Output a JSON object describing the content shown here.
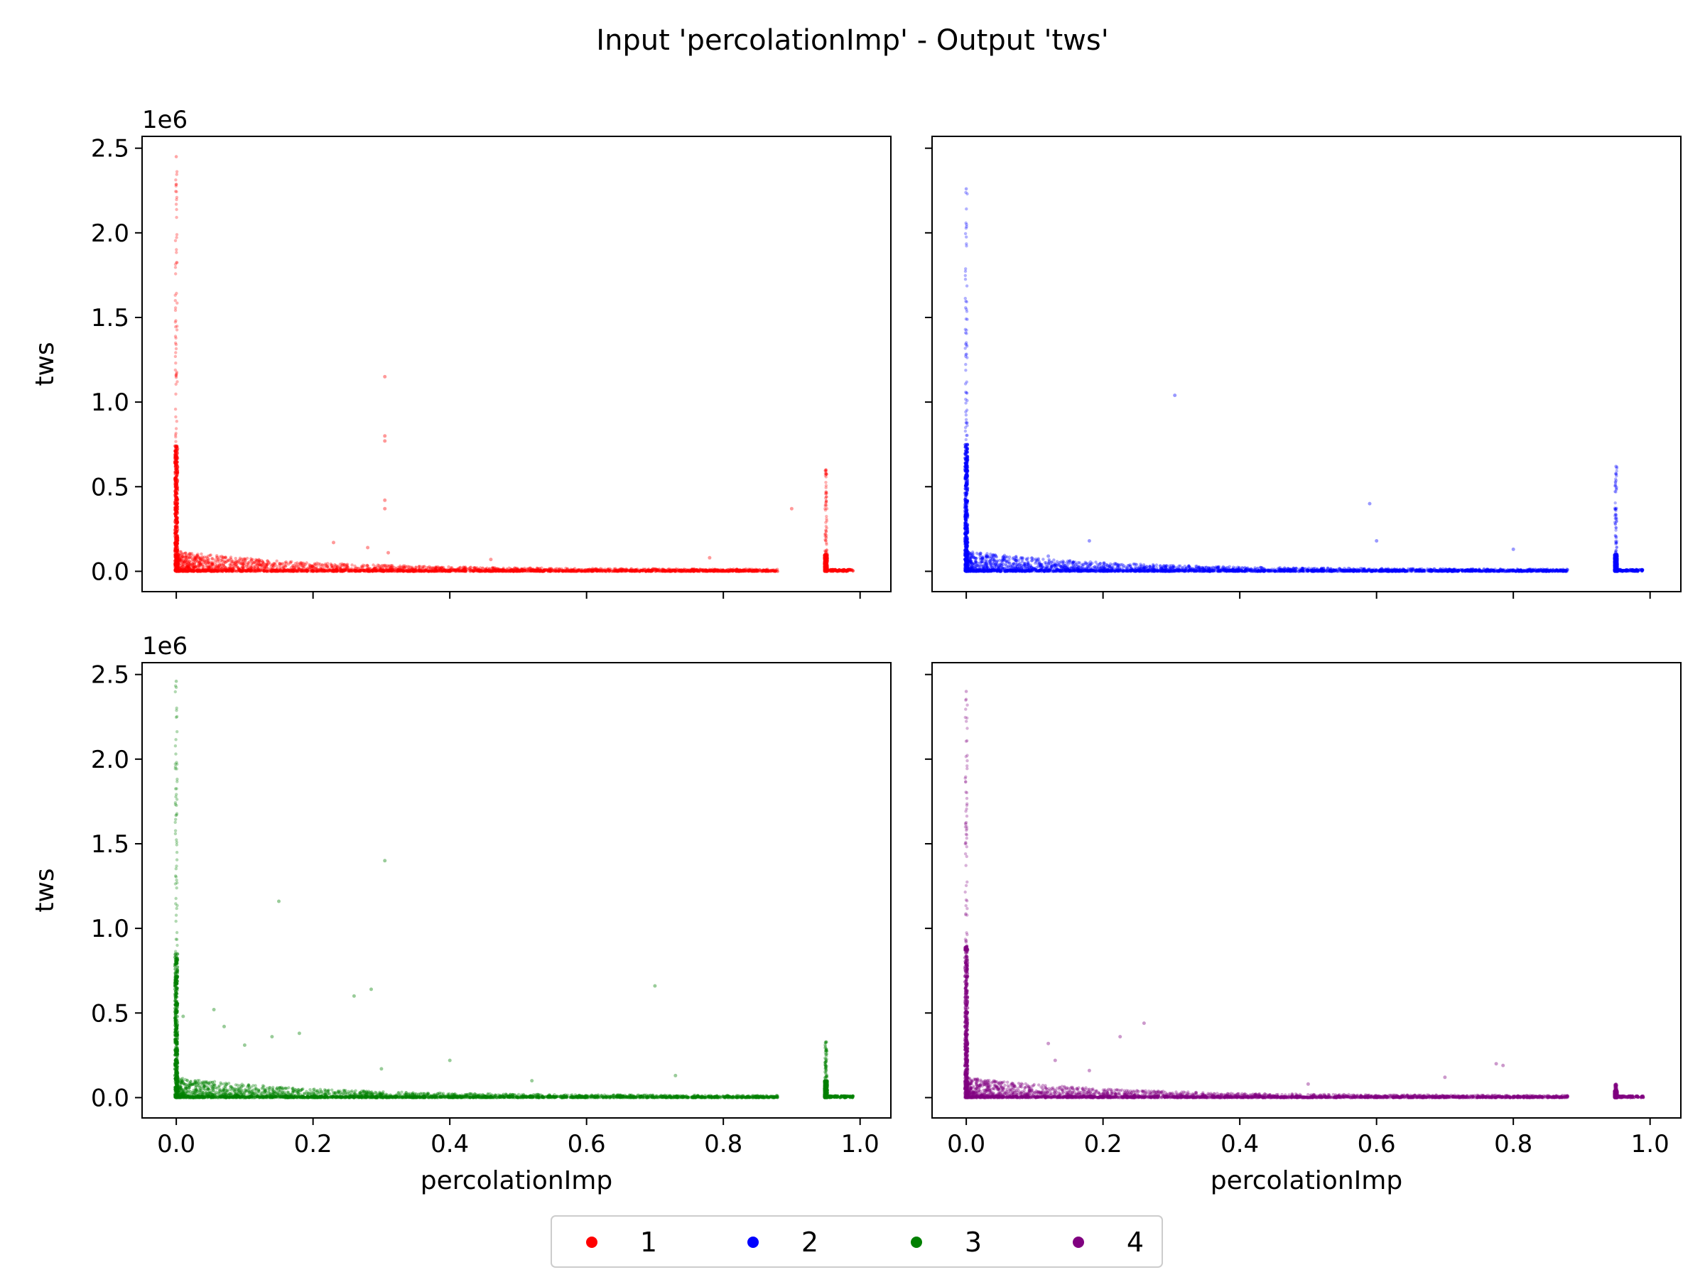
{
  "figure": {
    "title": "Input 'percolationImp' - Output 'tws'"
  },
  "chart_data": [
    {
      "type": "scatter",
      "panel": "top-left",
      "series": [
        {
          "name": "1",
          "color": "#ff0000"
        }
      ],
      "xlabel": "",
      "ylabel": "tws",
      "y_offset_text": "1e6",
      "xlim": [
        -0.05,
        1.045
      ],
      "ylim": [
        -0.12,
        2.57
      ],
      "x_ticks": [
        0.0,
        0.2,
        0.4,
        0.6,
        0.8,
        1.0
      ],
      "x_tick_labels": [],
      "y_ticks": [
        0.0,
        0.5,
        1.0,
        1.5,
        2.0,
        2.5
      ],
      "y_tick_labels": [
        "0.0",
        "0.5",
        "1.0",
        "1.5",
        "2.0",
        "2.5"
      ],
      "vertical_clusters": [
        {
          "x": 0.0,
          "y_max": 2.45,
          "dense_to": 0.75
        },
        {
          "x": 0.95,
          "y_max": 0.6,
          "dense_to": 0.1
        }
      ],
      "outliers": [
        {
          "x": 0.305,
          "y": 1.15
        },
        {
          "x": 0.305,
          "y": 0.8
        },
        {
          "x": 0.305,
          "y": 0.77
        },
        {
          "x": 0.305,
          "y": 0.42
        },
        {
          "x": 0.305,
          "y": 0.37
        },
        {
          "x": 0.9,
          "y": 0.37
        },
        {
          "x": 0.23,
          "y": 0.17
        },
        {
          "x": 0.28,
          "y": 0.14
        },
        {
          "x": 0.31,
          "y": 0.11
        },
        {
          "x": 0.78,
          "y": 0.08
        },
        {
          "x": 0.46,
          "y": 0.07
        }
      ]
    },
    {
      "type": "scatter",
      "panel": "top-right",
      "series": [
        {
          "name": "2",
          "color": "#0000ff"
        }
      ],
      "xlabel": "",
      "ylabel": "",
      "xlim": [
        -0.05,
        1.045
      ],
      "ylim": [
        -0.12,
        2.57
      ],
      "x_ticks": [
        0.0,
        0.2,
        0.4,
        0.6,
        0.8,
        1.0
      ],
      "x_tick_labels": [],
      "y_ticks": [
        0.0,
        0.5,
        1.0,
        1.5,
        2.0,
        2.5
      ],
      "y_tick_labels": [],
      "vertical_clusters": [
        {
          "x": 0.0,
          "y_max": 2.26,
          "dense_to": 0.75
        },
        {
          "x": 0.95,
          "y_max": 0.62,
          "dense_to": 0.1
        }
      ],
      "outliers": [
        {
          "x": 0.305,
          "y": 1.04
        },
        {
          "x": 0.59,
          "y": 0.4
        },
        {
          "x": 0.6,
          "y": 0.18
        },
        {
          "x": 0.18,
          "y": 0.18
        },
        {
          "x": 0.8,
          "y": 0.13
        },
        {
          "x": 0.12,
          "y": 0.09
        }
      ]
    },
    {
      "type": "scatter",
      "panel": "bottom-left",
      "series": [
        {
          "name": "3",
          "color": "#008000"
        }
      ],
      "xlabel": "percolationImp",
      "ylabel": "tws",
      "y_offset_text": "1e6",
      "xlim": [
        -0.05,
        1.045
      ],
      "ylim": [
        -0.12,
        2.57
      ],
      "x_ticks": [
        0.0,
        0.2,
        0.4,
        0.6,
        0.8,
        1.0
      ],
      "x_tick_labels": [
        "0.0",
        "0.2",
        "0.4",
        "0.6",
        "0.8",
        "1.0"
      ],
      "y_ticks": [
        0.0,
        0.5,
        1.0,
        1.5,
        2.0,
        2.5
      ],
      "y_tick_labels": [
        "0.0",
        "0.5",
        "1.0",
        "1.5",
        "2.0",
        "2.5"
      ],
      "vertical_clusters": [
        {
          "x": 0.0,
          "y_max": 2.46,
          "dense_to": 0.85
        },
        {
          "x": 0.95,
          "y_max": 0.33,
          "dense_to": 0.1
        }
      ],
      "outliers": [
        {
          "x": 0.305,
          "y": 1.4
        },
        {
          "x": 0.15,
          "y": 1.16
        },
        {
          "x": 0.7,
          "y": 0.66
        },
        {
          "x": 0.285,
          "y": 0.64
        },
        {
          "x": 0.26,
          "y": 0.6
        },
        {
          "x": 0.055,
          "y": 0.52
        },
        {
          "x": 0.01,
          "y": 0.48
        },
        {
          "x": 0.07,
          "y": 0.42
        },
        {
          "x": 0.18,
          "y": 0.38
        },
        {
          "x": 0.14,
          "y": 0.36
        },
        {
          "x": 0.1,
          "y": 0.31
        },
        {
          "x": 0.3,
          "y": 0.17
        },
        {
          "x": 0.4,
          "y": 0.22
        },
        {
          "x": 0.73,
          "y": 0.13
        },
        {
          "x": 0.52,
          "y": 0.1
        }
      ]
    },
    {
      "type": "scatter",
      "panel": "bottom-right",
      "series": [
        {
          "name": "4",
          "color": "#800080"
        }
      ],
      "xlabel": "percolationImp",
      "ylabel": "",
      "xlim": [
        -0.05,
        1.045
      ],
      "ylim": [
        -0.12,
        2.57
      ],
      "x_ticks": [
        0.0,
        0.2,
        0.4,
        0.6,
        0.8,
        1.0
      ],
      "x_tick_labels": [
        "0.0",
        "0.2",
        "0.4",
        "0.6",
        "0.8",
        "1.0"
      ],
      "y_ticks": [
        0.0,
        0.5,
        1.0,
        1.5,
        2.0,
        2.5
      ],
      "y_tick_labels": [],
      "vertical_clusters": [
        {
          "x": 0.0,
          "y_max": 2.4,
          "dense_to": 0.9
        },
        {
          "x": 0.95,
          "y_max": 0.08,
          "dense_to": 0.04
        }
      ],
      "outliers": [
        {
          "x": 0.26,
          "y": 0.44
        },
        {
          "x": 0.225,
          "y": 0.36
        },
        {
          "x": 0.12,
          "y": 0.32
        },
        {
          "x": 0.13,
          "y": 0.22
        },
        {
          "x": 0.775,
          "y": 0.2
        },
        {
          "x": 0.785,
          "y": 0.19
        },
        {
          "x": 0.18,
          "y": 0.16
        },
        {
          "x": 0.7,
          "y": 0.12
        },
        {
          "x": 0.5,
          "y": 0.08
        }
      ]
    }
  ],
  "legend": {
    "placement": "bottom-center",
    "items": [
      {
        "label": "1",
        "color": "#ff0000"
      },
      {
        "label": "2",
        "color": "#0000ff"
      },
      {
        "label": "3",
        "color": "#008000"
      },
      {
        "label": "4",
        "color": "#800080"
      }
    ]
  }
}
